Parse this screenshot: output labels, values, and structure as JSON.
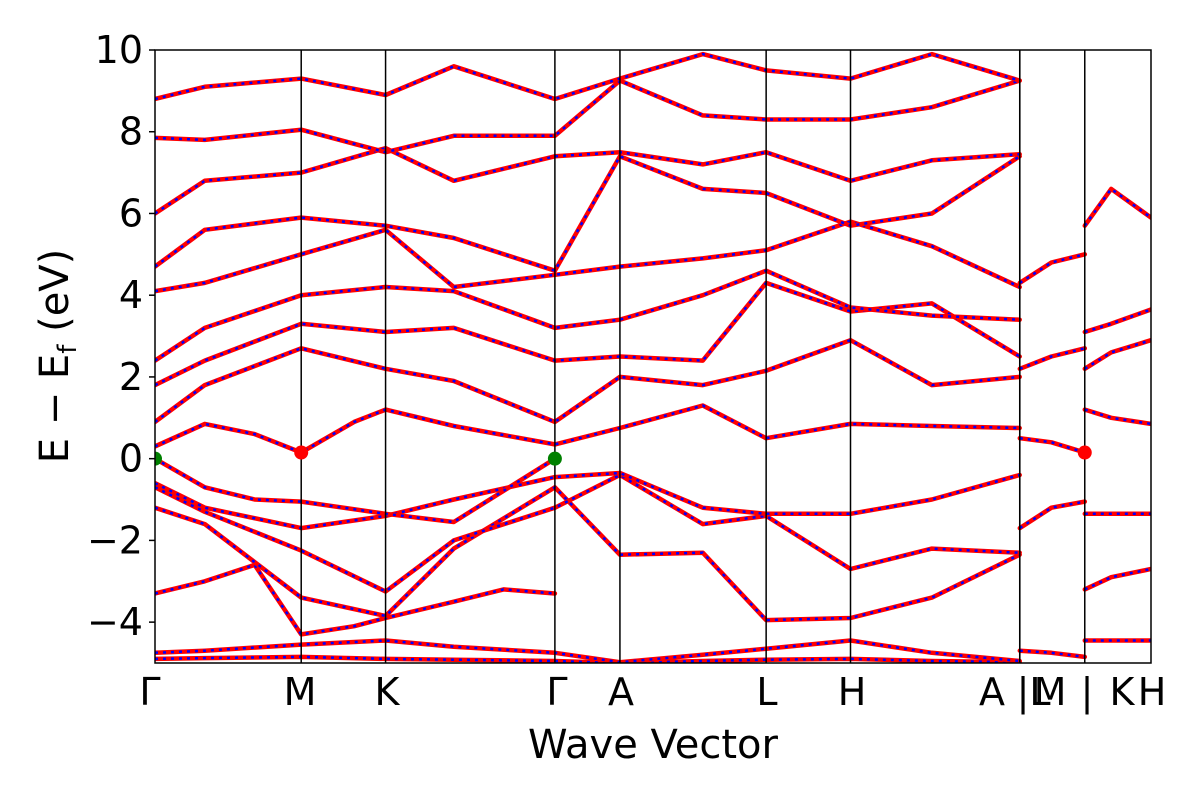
{
  "chart_data": {
    "type": "line",
    "title": "",
    "xlabel": "Wave Vector",
    "ylabel_main": "E − E",
    "ylabel_sub": "f",
    "ylabel_unit": " (eV)",
    "ylim": [
      -5,
      10
    ],
    "y_ticks": [
      "−4",
      "−2",
      "0",
      "2",
      "4",
      "6",
      "8",
      "10"
    ],
    "y_tick_values": [
      -4,
      -2,
      0,
      2,
      4,
      6,
      8,
      10
    ],
    "k_labels": [
      "Γ",
      "M",
      "K",
      "Γ",
      "A",
      "L",
      "H",
      "A",
      "|",
      "L",
      "M",
      "|",
      "K",
      "H"
    ],
    "k_breaks": [
      0,
      0.1468,
      0.2315,
      0.4015,
      0.4668,
      0.6136,
      0.6983,
      0.8682,
      0.8683,
      0.9335,
      1.0
    ],
    "series": [
      {
        "name": "",
        "style": "solid",
        "color": "#ff0000"
      },
      {
        "name": "",
        "style": "dotted",
        "color": "#0000ff"
      }
    ],
    "bands": [
      {
        "k": [
          0,
          0.05,
          0.1468,
          0.2315,
          0.3,
          0.4015,
          0.4668,
          0.55,
          0.6136,
          0.6983,
          0.78,
          0.8682
        ],
        "e": [
          -4.9,
          -4.88,
          -4.85,
          -4.9,
          -4.92,
          -4.95,
          -5.0,
          -4.95,
          -4.92,
          -4.9,
          -4.95,
          -4.98
        ]
      },
      {
        "k": [
          0,
          0.05,
          0.1468,
          0.2315,
          0.3,
          0.4015,
          0.4668,
          0.55,
          0.6136,
          0.6983,
          0.78,
          0.8682
        ],
        "e": [
          -4.75,
          -4.7,
          -4.55,
          -4.45,
          -4.6,
          -4.75,
          -4.98,
          -4.8,
          -4.65,
          -4.45,
          -4.75,
          -4.95
        ]
      },
      {
        "k": [
          0,
          0.05,
          0.1,
          0.1468,
          0.2,
          0.2315,
          0.3,
          0.35,
          0.4015
        ],
        "e": [
          -3.3,
          -3.0,
          -2.6,
          -4.3,
          -4.1,
          -3.9,
          -3.5,
          -3.2,
          -3.3
        ]
      },
      {
        "k": [
          0,
          0.05,
          0.1468,
          0.2315,
          0.3,
          0.4015,
          0.4668,
          0.55,
          0.6136,
          0.6983,
          0.78,
          0.8682
        ],
        "e": [
          -1.2,
          -1.6,
          -3.4,
          -3.85,
          -2.2,
          -0.7,
          -2.35,
          -2.3,
          -3.95,
          -3.9,
          -3.4,
          -2.35
        ]
      },
      {
        "k": [
          0,
          0.05,
          0.1468,
          0.2315,
          0.3,
          0.4015,
          0.4668,
          0.55,
          0.6136,
          0.6983,
          0.78,
          0.8682
        ],
        "e": [
          -0.7,
          -1.3,
          -2.25,
          -3.25,
          -2.0,
          -1.2,
          -0.4,
          -1.6,
          -1.4,
          -2.7,
          -2.2,
          -2.3
        ]
      },
      {
        "k": [
          0,
          0.05,
          0.1468,
          0.2315,
          0.3,
          0.4015,
          0.4668,
          0.55,
          0.6136,
          0.6983,
          0.78,
          0.8682
        ],
        "e": [
          -0.6,
          -1.2,
          -1.7,
          -1.4,
          -1.0,
          -0.45,
          -0.35,
          -1.2,
          -1.35,
          -1.35,
          -1.0,
          -0.4
        ]
      },
      {
        "k": [
          0,
          0.05,
          0.1,
          0.1468,
          0.2315,
          0.3,
          0.4015
        ],
        "e": [
          0.0,
          -0.7,
          -1.0,
          -1.05,
          -1.35,
          -1.55,
          0.0
        ]
      },
      {
        "k": [
          0,
          0.05,
          0.1,
          0.1468,
          0.2,
          0.2315,
          0.3,
          0.4015,
          0.4668,
          0.55,
          0.6136,
          0.6983,
          0.78,
          0.8682
        ],
        "e": [
          0.3,
          0.85,
          0.6,
          0.15,
          0.9,
          1.2,
          0.8,
          0.35,
          0.75,
          1.3,
          0.5,
          0.85,
          0.8,
          0.75
        ]
      },
      {
        "k": [
          0,
          0.05,
          0.1468,
          0.2315,
          0.3,
          0.4015,
          0.4668,
          0.55,
          0.6136,
          0.6983,
          0.78,
          0.8682
        ],
        "e": [
          0.9,
          1.8,
          2.7,
          2.2,
          1.9,
          0.9,
          2.0,
          1.8,
          2.15,
          2.9,
          1.8,
          2.0
        ]
      },
      {
        "k": [
          0,
          0.05,
          0.1468,
          0.2315,
          0.3,
          0.4015,
          0.4668,
          0.55,
          0.6136,
          0.6983,
          0.78,
          0.8682
        ],
        "e": [
          1.8,
          2.4,
          3.3,
          3.1,
          3.2,
          2.4,
          2.5,
          2.4,
          4.3,
          3.6,
          3.8,
          2.5
        ]
      },
      {
        "k": [
          0,
          0.05,
          0.1468,
          0.2315,
          0.3,
          0.4015,
          0.4668,
          0.55,
          0.6136,
          0.6983,
          0.78,
          0.8682
        ],
        "e": [
          2.4,
          3.2,
          4.0,
          4.2,
          4.1,
          3.2,
          3.4,
          4.0,
          4.6,
          3.7,
          3.5,
          3.4
        ]
      },
      {
        "k": [
          0,
          0.05,
          0.1468,
          0.2315,
          0.3,
          0.4015,
          0.4668,
          0.55,
          0.6136,
          0.6983,
          0.78,
          0.8682
        ],
        "e": [
          4.1,
          4.3,
          5.0,
          5.6,
          4.2,
          4.5,
          4.7,
          4.9,
          5.1,
          5.8,
          5.2,
          4.2
        ]
      },
      {
        "k": [
          0,
          0.05,
          0.1468,
          0.2315,
          0.3,
          0.4015,
          0.4668,
          0.55,
          0.6136,
          0.6983,
          0.78,
          0.8682
        ],
        "e": [
          4.7,
          5.6,
          5.9,
          5.7,
          5.4,
          4.6,
          7.4,
          6.6,
          6.5,
          5.7,
          6.0,
          7.4
        ]
      },
      {
        "k": [
          0,
          0.05,
          0.1468,
          0.2315,
          0.3,
          0.4015,
          0.4668,
          0.55,
          0.6136,
          0.6983,
          0.78,
          0.8682
        ],
        "e": [
          6.0,
          6.8,
          7.0,
          7.6,
          6.8,
          7.4,
          7.5,
          7.2,
          7.5,
          6.8,
          7.3,
          7.45
        ]
      },
      {
        "k": [
          0,
          0.05,
          0.1468,
          0.2315,
          0.3,
          0.4015,
          0.4668,
          0.55,
          0.6136,
          0.6983,
          0.78,
          0.8682
        ],
        "e": [
          7.85,
          7.8,
          8.05,
          7.5,
          7.9,
          7.9,
          9.25,
          8.4,
          8.3,
          8.3,
          8.6,
          9.25
        ]
      },
      {
        "k": [
          0,
          0.05,
          0.1468,
          0.2315,
          0.3,
          0.4015,
          0.4668,
          0.55,
          0.6136,
          0.6983,
          0.78,
          0.8682
        ],
        "e": [
          8.8,
          9.1,
          9.3,
          8.9,
          9.6,
          8.8,
          9.3,
          9.9,
          9.5,
          9.3,
          9.9,
          9.25
        ]
      },
      {
        "k": [
          0.8683,
          0.9,
          0.9335
        ],
        "e": [
          0.5,
          0.4,
          0.15
        ]
      },
      {
        "k": [
          0.8683,
          0.9,
          0.9335
        ],
        "e": [
          2.2,
          2.5,
          2.7
        ]
      },
      {
        "k": [
          0.8683,
          0.9,
          0.9335
        ],
        "e": [
          4.3,
          4.8,
          5.0
        ]
      },
      {
        "k": [
          0.8683,
          0.9,
          0.9335
        ],
        "e": [
          -1.7,
          -1.2,
          -1.05
        ]
      },
      {
        "k": [
          0.8683,
          0.9,
          0.9335
        ],
        "e": [
          -4.7,
          -4.75,
          -4.85
        ]
      },
      {
        "k": [
          0.9335,
          0.96,
          1.0
        ],
        "e": [
          1.2,
          1.0,
          0.85
        ]
      },
      {
        "k": [
          0.9335,
          0.96,
          1.0
        ],
        "e": [
          2.2,
          2.6,
          2.9
        ]
      },
      {
        "k": [
          0.9335,
          0.96,
          1.0
        ],
        "e": [
          3.1,
          3.3,
          3.65
        ]
      },
      {
        "k": [
          0.9335,
          0.96,
          1.0
        ],
        "e": [
          5.7,
          6.6,
          5.9
        ]
      },
      {
        "k": [
          0.9335,
          0.96,
          1.0
        ],
        "e": [
          -1.35,
          -1.35,
          -1.35
        ]
      },
      {
        "k": [
          0.9335,
          0.96,
          1.0
        ],
        "e": [
          -3.2,
          -2.9,
          -2.7
        ]
      },
      {
        "k": [
          0.9335,
          0.96,
          1.0
        ],
        "e": [
          -4.45,
          -4.45,
          -4.45
        ]
      }
    ],
    "markers": [
      {
        "k": 0,
        "e": 0.0,
        "color": "#008000"
      },
      {
        "k": 0.4015,
        "e": 0.0,
        "color": "#008000"
      },
      {
        "k": 0.1468,
        "e": 0.15,
        "color": "#ff0000"
      },
      {
        "k": 0.9335,
        "e": 0.15,
        "color": "#ff0000"
      }
    ]
  }
}
